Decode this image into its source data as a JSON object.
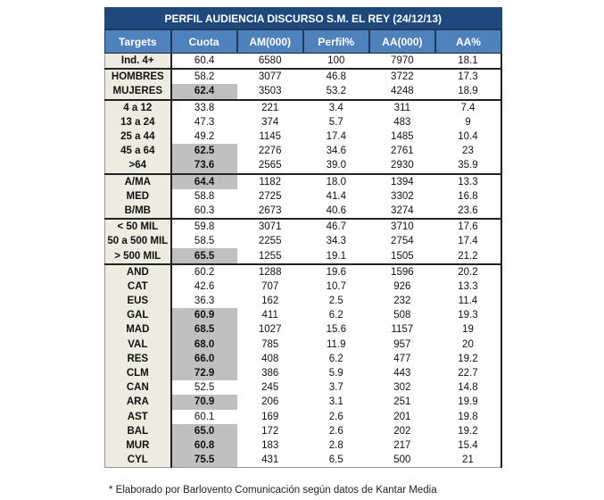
{
  "title": "PERFIL AUDIENCIA DISCURSO S.M. EL REY (24/12/13)",
  "headers": [
    "Targets",
    "Cuota",
    "AM(000)",
    "Perfil%",
    "AA(000)",
    "AA%"
  ],
  "rows": [
    {
      "t": "Ind. 4+",
      "v": [
        "60.4",
        "6580",
        "100",
        "7970",
        "18.1"
      ],
      "hl": false,
      "gs": false
    },
    {
      "t": "HOMBRES",
      "v": [
        "58.2",
        "3077",
        "46.8",
        "3722",
        "17.3"
      ],
      "hl": false,
      "gs": true
    },
    {
      "t": "MUJERES",
      "v": [
        "62.4",
        "3503",
        "53.2",
        "4248",
        "18.9"
      ],
      "hl": true,
      "gs": false
    },
    {
      "t": "4 a 12",
      "v": [
        "33.8",
        "221",
        "3.4",
        "311",
        "7.4"
      ],
      "hl": false,
      "gs": true
    },
    {
      "t": "13 a 24",
      "v": [
        "47.3",
        "374",
        "5.7",
        "483",
        "9"
      ],
      "hl": false,
      "gs": false
    },
    {
      "t": "25 a 44",
      "v": [
        "49.2",
        "1145",
        "17.4",
        "1485",
        "10.4"
      ],
      "hl": false,
      "gs": false
    },
    {
      "t": "45 a 64",
      "v": [
        "62.5",
        "2276",
        "34.6",
        "2761",
        "23"
      ],
      "hl": true,
      "gs": false
    },
    {
      "t": ">64",
      "v": [
        "73.6",
        "2565",
        "39.0",
        "2930",
        "35.9"
      ],
      "hl": true,
      "gs": false
    },
    {
      "t": "A/MA",
      "v": [
        "64.4",
        "1182",
        "18.0",
        "1394",
        "13.3"
      ],
      "hl": true,
      "gs": true
    },
    {
      "t": "MED",
      "v": [
        "58.8",
        "2725",
        "41.4",
        "3302",
        "16.8"
      ],
      "hl": false,
      "gs": false
    },
    {
      "t": "B/MB",
      "v": [
        "60.3",
        "2673",
        "40.6",
        "3274",
        "23.6"
      ],
      "hl": false,
      "gs": false
    },
    {
      "t": "< 50 MIL",
      "v": [
        "59.8",
        "3071",
        "46.7",
        "3710",
        "17.6"
      ],
      "hl": false,
      "gs": true
    },
    {
      "t": "50 a 500 MIL",
      "v": [
        "58.5",
        "2255",
        "34.3",
        "2754",
        "17.4"
      ],
      "hl": false,
      "gs": false
    },
    {
      "t": "> 500 MIL",
      "v": [
        "65.5",
        "1255",
        "19.1",
        "1505",
        "21.2"
      ],
      "hl": true,
      "gs": false
    },
    {
      "t": "AND",
      "v": [
        "60.2",
        "1288",
        "19.6",
        "1596",
        "20.2"
      ],
      "hl": false,
      "gs": true
    },
    {
      "t": "CAT",
      "v": [
        "42.6",
        "707",
        "10.7",
        "926",
        "13.3"
      ],
      "hl": false,
      "gs": false
    },
    {
      "t": "EUS",
      "v": [
        "36.3",
        "162",
        "2.5",
        "232",
        "11.4"
      ],
      "hl": false,
      "gs": false
    },
    {
      "t": "GAL",
      "v": [
        "60.9",
        "411",
        "6.2",
        "508",
        "19.3"
      ],
      "hl": true,
      "gs": false
    },
    {
      "t": "MAD",
      "v": [
        "68.5",
        "1027",
        "15.6",
        "1157",
        "19"
      ],
      "hl": true,
      "gs": false
    },
    {
      "t": "VAL",
      "v": [
        "68.0",
        "785",
        "11.9",
        "957",
        "20"
      ],
      "hl": true,
      "gs": false
    },
    {
      "t": "RES",
      "v": [
        "66.0",
        "408",
        "6.2",
        "477",
        "19.2"
      ],
      "hl": true,
      "gs": false
    },
    {
      "t": "CLM",
      "v": [
        "72.9",
        "386",
        "5.9",
        "443",
        "22.7"
      ],
      "hl": true,
      "gs": false
    },
    {
      "t": "CAN",
      "v": [
        "52.5",
        "245",
        "3.7",
        "302",
        "14.8"
      ],
      "hl": false,
      "gs": false
    },
    {
      "t": "ARA",
      "v": [
        "70.9",
        "206",
        "3.1",
        "251",
        "19.9"
      ],
      "hl": true,
      "gs": false
    },
    {
      "t": "AST",
      "v": [
        "60.1",
        "169",
        "2.6",
        "201",
        "19.8"
      ],
      "hl": false,
      "gs": false
    },
    {
      "t": "BAL",
      "v": [
        "65.0",
        "172",
        "2.6",
        "202",
        "19.2"
      ],
      "hl": true,
      "gs": false
    },
    {
      "t": "MUR",
      "v": [
        "60.8",
        "183",
        "2.8",
        "217",
        "15.4"
      ],
      "hl": true,
      "gs": false
    },
    {
      "t": "CYL",
      "v": [
        "75.5",
        "431",
        "6.5",
        "500",
        "21"
      ],
      "hl": true,
      "gs": false
    }
  ],
  "footnote": "* Elaborado por Barlovento Comunicación según datos de Kantar Media"
}
